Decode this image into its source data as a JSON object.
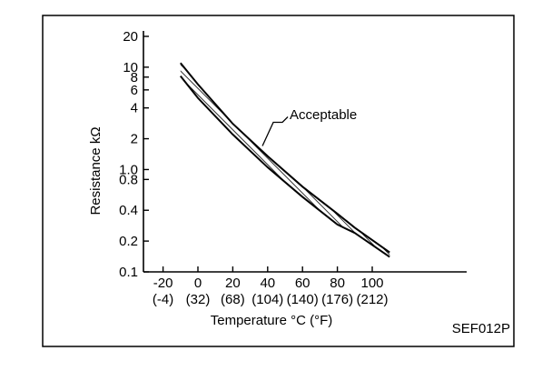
{
  "chart_data": {
    "type": "line",
    "title": "",
    "xlabel": "Temperature °C (°F)",
    "ylabel": "Resistance kΩ",
    "y_scale": "log",
    "xlim": [
      -20,
      110
    ],
    "ylim": [
      0.1,
      20
    ],
    "x_ticks": [
      {
        "value": -20,
        "label": "-20",
        "sublabel": "(-4)"
      },
      {
        "value": 0,
        "label": "0",
        "sublabel": "(32)"
      },
      {
        "value": 20,
        "label": "20",
        "sublabel": "(68)"
      },
      {
        "value": 40,
        "label": "40",
        "sublabel": "(104)"
      },
      {
        "value": 60,
        "label": "60",
        "sublabel": "(140)"
      },
      {
        "value": 80,
        "label": "80",
        "sublabel": "(176)"
      },
      {
        "value": 100,
        "label": "100",
        "sublabel": "(212)"
      }
    ],
    "y_ticks": [
      {
        "value": 0.1,
        "label": "0.1"
      },
      {
        "value": 0.2,
        "label": "0.2"
      },
      {
        "value": 0.4,
        "label": "0.4"
      },
      {
        "value": 0.8,
        "label": "0.8"
      },
      {
        "value": 1.0,
        "label": "1.0"
      },
      {
        "value": 2,
        "label": "2"
      },
      {
        "value": 4,
        "label": "4"
      },
      {
        "value": 6,
        "label": "6"
      },
      {
        "value": 8,
        "label": "8"
      },
      {
        "value": 10,
        "label": "10"
      },
      {
        "value": 20,
        "label": "20"
      }
    ],
    "band": {
      "label": "Acceptable",
      "upper": [
        [
          -10,
          11
        ],
        [
          0,
          6.8
        ],
        [
          20,
          2.8
        ],
        [
          40,
          1.35
        ],
        [
          60,
          0.68
        ],
        [
          80,
          0.37
        ],
        [
          90,
          0.27
        ],
        [
          110,
          0.155
        ]
      ],
      "lower": [
        [
          -10,
          8.2
        ],
        [
          0,
          5.0
        ],
        [
          20,
          2.2
        ],
        [
          40,
          1.05
        ],
        [
          60,
          0.54
        ],
        [
          80,
          0.29
        ],
        [
          90,
          0.24
        ],
        [
          110,
          0.14
        ]
      ]
    },
    "grid": false,
    "legend": "none",
    "figure_code": "SEF012P"
  }
}
